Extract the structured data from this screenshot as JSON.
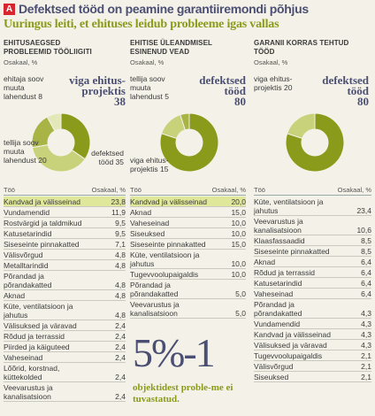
{
  "header": {
    "badge": "A",
    "title": "Defektsed tööd on peamine garantiiremondi põhjus",
    "subtitle": "Uuringus leiti, et ehituses leidub probleeme igas vallas"
  },
  "colors": {
    "olive": "#8a9a1a",
    "olive_light": "#c8d27a",
    "olive_pale": "#dfe79a",
    "navy": "#4b4f73",
    "red": "#d8262f"
  },
  "columns": [
    {
      "title": "EHITUSAEGSED PROBLEEMID TÖÖLIIGITI",
      "unit": "Osakaal, %",
      "donut_labels": {
        "a": "ehitaja soov muuta lahendust 8",
        "b_title": "viga ehitus-projektis",
        "b_num": "38",
        "c": "tellija soov muuta lahendust 20",
        "d": "defektsed tööd 35"
      },
      "table_header": {
        "name": "Töö",
        "value": "Osakaal, %"
      },
      "rows": [
        {
          "name": "Kandvad ja välisseinad",
          "value": "23,8"
        },
        {
          "name": "Vundamendid",
          "value": "11,9"
        },
        {
          "name": "Rostvärgid ja taldmikud",
          "value": "9,5"
        },
        {
          "name": "Katusetarindid",
          "value": "9,5"
        },
        {
          "name": "Siseseinte pinnakatted",
          "value": "7,1"
        },
        {
          "name": "Välisvõrgud",
          "value": "4,8"
        },
        {
          "name": "Metalltarindid",
          "value": "4,8"
        },
        {
          "name": "Põrandad ja\npõrandakatted",
          "value": "4,8"
        },
        {
          "name": "Aknad",
          "value": "4,8"
        },
        {
          "name": "Küte, ventilatsioon ja\njahutus",
          "value": "4,8"
        },
        {
          "name": "Välisuksed ja väravad",
          "value": "2,4"
        },
        {
          "name": "Rõdud ja terrassid",
          "value": "2,4"
        },
        {
          "name": "Piirded ja käiguteed",
          "value": "2,4"
        },
        {
          "name": "Vaheseinad",
          "value": "2,4"
        },
        {
          "name": "Lõõrid, korstnad,\nküttekolded",
          "value": "2,4"
        },
        {
          "name": "Veevarustus ja\nkanalisatsioon",
          "value": "2,4"
        }
      ]
    },
    {
      "title": "EHITISE ÜLEANDMISEL ESINENUD VEAD",
      "unit": "Osakaal, %",
      "donut_labels": {
        "a": "tellija soov muuta lahendust 5",
        "b_title": "defektsed tööd",
        "b_num": "80",
        "c": "viga ehitus-projektis 15"
      },
      "table_header": {
        "name": "Töö",
        "value": "Osakaal, %"
      },
      "rows": [
        {
          "name": "Kandvad ja välisseinad",
          "value": "20,0"
        },
        {
          "name": "Aknad",
          "value": "15,0"
        },
        {
          "name": "Vaheseinad",
          "value": "10,0"
        },
        {
          "name": "Siseuksed",
          "value": "10,0"
        },
        {
          "name": "Siseseinte pinnakatted",
          "value": "15,0"
        },
        {
          "name": "Küte, ventilatsioon ja\njahutus",
          "value": "10,0"
        },
        {
          "name": "Tugevvoolupaigaldis",
          "value": "10,0"
        },
        {
          "name": "Põrandad ja\npõrandakatted",
          "value": "5,0"
        },
        {
          "name": "Veevarustus ja\nkanalisatsioon",
          "value": "5,0"
        }
      ],
      "highlight": {
        "big": "5%-1",
        "text": "objektidest proble-me ei tuvastatud."
      }
    },
    {
      "title": "GARANII KORRAS TEHTUD TÖÖD",
      "unit": "Osakaal, %",
      "donut_labels": {
        "a": "viga ehitus-projektis 20",
        "b_title": "defektsed tööd",
        "b_num": "80"
      },
      "table_header": {
        "name": "Töö",
        "value": "Osakaal, %"
      },
      "rows": [
        {
          "name": "Küte, ventilatsioon ja\njahutus",
          "value": "23,4"
        },
        {
          "name": "Veevarustus ja\nkanalisatsioon",
          "value": "10,6"
        },
        {
          "name": "Klaasfassaadid",
          "value": "8,5"
        },
        {
          "name": "Siseseinte pinnakatted",
          "value": "8,5"
        },
        {
          "name": "Aknad",
          "value": "6,4"
        },
        {
          "name": "Rõdud ja terrassid",
          "value": "6,4"
        },
        {
          "name": "Katusetarindid",
          "value": "6,4"
        },
        {
          "name": "Vaheseinad",
          "value": "6,4"
        },
        {
          "name": "Põrandad ja\npõrandakatted",
          "value": "4,3"
        },
        {
          "name": "Vundamendid",
          "value": "4,3"
        },
        {
          "name": "Kandvad ja välisseinad",
          "value": "4,3"
        },
        {
          "name": "Välisuksed ja väravad",
          "value": "4,3"
        },
        {
          "name": "Tugevvoolupaigaldis",
          "value": "2,1"
        },
        {
          "name": "Välisvõrgud",
          "value": "2,1"
        },
        {
          "name": "Siseuksed",
          "value": "2,1"
        }
      ]
    }
  ],
  "chart_data": [
    {
      "type": "pie",
      "categories": [
        "defektsed tööd",
        "viga ehitusprojektis",
        "tellija soov muuta lahendust",
        "ehitaja soov muuta lahendust"
      ],
      "values": [
        35,
        38,
        20,
        8
      ]
    },
    {
      "type": "pie",
      "categories": [
        "defektsed tööd",
        "viga ehitusprojektis",
        "tellija soov muuta lahendust"
      ],
      "values": [
        80,
        15,
        5
      ]
    },
    {
      "type": "pie",
      "categories": [
        "defektsed tööd",
        "viga ehitusprojektis"
      ],
      "values": [
        80,
        20
      ]
    }
  ]
}
